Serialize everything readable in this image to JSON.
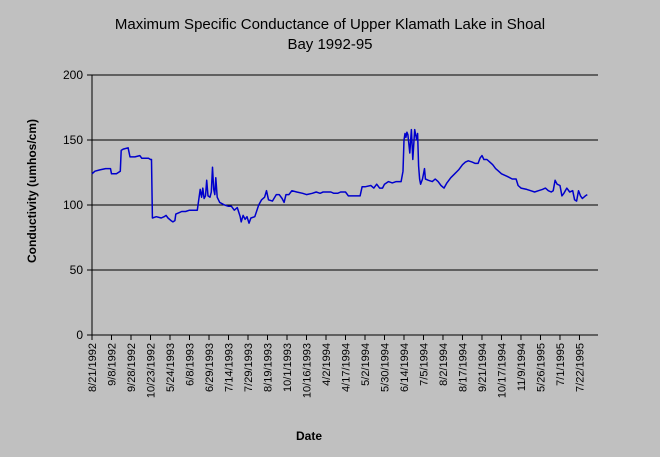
{
  "chart_data": {
    "type": "line",
    "title_lines": [
      "Maximum Specific Conductance of Upper Klamath Lake in Shoal",
      "Bay 1992-95"
    ],
    "xlabel": "Date",
    "ylabel": "Conductivity (umhos/cm)",
    "ylim": [
      0,
      200
    ],
    "yticks": [
      0,
      50,
      100,
      150,
      200
    ],
    "grid": "horizontal",
    "legend": "none",
    "line_color": "#0000cc",
    "x_tick_labels": [
      "8/21/1992",
      "9/8/1992",
      "9/28/1992",
      "10/23/1992",
      "5/24/1993",
      "6/8/1993",
      "6/29/1993",
      "7/14/1993",
      "7/29/1993",
      "8/19/1993",
      "10/1/1993",
      "10/16/1993",
      "4/2/1994",
      "4/17/1994",
      "5/2/1994",
      "5/30/1994",
      "6/14/1994",
      "7/5/1994",
      "8/2/1994",
      "8/17/1994",
      "9/21/1994",
      "10/17/1994",
      "11/9/1994",
      "5/26/1995",
      "7/1/1995",
      "7/22/1995"
    ],
    "x_range": [
      0,
      25.95
    ],
    "series": [
      {
        "points": [
          [
            0.0,
            124
          ],
          [
            0.15,
            126
          ],
          [
            0.4,
            127
          ],
          [
            0.7,
            128
          ],
          [
            0.95,
            128
          ],
          [
            1.0,
            124
          ],
          [
            1.25,
            124
          ],
          [
            1.45,
            126
          ],
          [
            1.5,
            142
          ],
          [
            1.6,
            143
          ],
          [
            1.85,
            144
          ],
          [
            1.95,
            137
          ],
          [
            2.2,
            137
          ],
          [
            2.45,
            138
          ],
          [
            2.55,
            136
          ],
          [
            2.9,
            136
          ],
          [
            3.0,
            135
          ],
          [
            3.05,
            135
          ],
          [
            3.1,
            90
          ],
          [
            3.3,
            91
          ],
          [
            3.55,
            90
          ],
          [
            3.7,
            91
          ],
          [
            3.8,
            92
          ],
          [
            3.9,
            90
          ],
          [
            4.05,
            88
          ],
          [
            4.15,
            87
          ],
          [
            4.25,
            88
          ],
          [
            4.3,
            93
          ],
          [
            4.45,
            94
          ],
          [
            4.6,
            95
          ],
          [
            4.8,
            95
          ],
          [
            5.0,
            96
          ],
          [
            5.2,
            96
          ],
          [
            5.4,
            96
          ],
          [
            5.55,
            112
          ],
          [
            5.62,
            106
          ],
          [
            5.68,
            113
          ],
          [
            5.75,
            105
          ],
          [
            5.82,
            107
          ],
          [
            5.88,
            119
          ],
          [
            5.95,
            107
          ],
          [
            6.05,
            106
          ],
          [
            6.12,
            110
          ],
          [
            6.18,
            129
          ],
          [
            6.24,
            112
          ],
          [
            6.3,
            108
          ],
          [
            6.35,
            121
          ],
          [
            6.42,
            106
          ],
          [
            6.55,
            102
          ],
          [
            6.8,
            100
          ],
          [
            7.0,
            99
          ],
          [
            7.15,
            99
          ],
          [
            7.3,
            96
          ],
          [
            7.45,
            98
          ],
          [
            7.6,
            91
          ],
          [
            7.65,
            87
          ],
          [
            7.75,
            92
          ],
          [
            7.85,
            89
          ],
          [
            7.95,
            91
          ],
          [
            8.05,
            86
          ],
          [
            8.15,
            90
          ],
          [
            8.35,
            91
          ],
          [
            8.55,
            100
          ],
          [
            8.7,
            104
          ],
          [
            8.85,
            106
          ],
          [
            8.95,
            111
          ],
          [
            9.05,
            104
          ],
          [
            9.25,
            103
          ],
          [
            9.45,
            108
          ],
          [
            9.6,
            108
          ],
          [
            9.75,
            105
          ],
          [
            9.85,
            102
          ],
          [
            9.95,
            108
          ],
          [
            10.1,
            108
          ],
          [
            10.25,
            111
          ],
          [
            10.5,
            110
          ],
          [
            10.8,
            109
          ],
          [
            11.0,
            108
          ],
          [
            11.3,
            109
          ],
          [
            11.5,
            110
          ],
          [
            11.7,
            109
          ],
          [
            11.85,
            110
          ],
          [
            12.05,
            110
          ],
          [
            12.25,
            110
          ],
          [
            12.4,
            109
          ],
          [
            12.6,
            109
          ],
          [
            12.75,
            110
          ],
          [
            13.0,
            110
          ],
          [
            13.15,
            107
          ],
          [
            13.5,
            107
          ],
          [
            13.75,
            107
          ],
          [
            13.85,
            114
          ],
          [
            14.0,
            114
          ],
          [
            14.3,
            115
          ],
          [
            14.45,
            113
          ],
          [
            14.6,
            116
          ],
          [
            14.75,
            113
          ],
          [
            14.9,
            113
          ],
          [
            15.0,
            116
          ],
          [
            15.2,
            118
          ],
          [
            15.4,
            117
          ],
          [
            15.6,
            118
          ],
          [
            15.85,
            118
          ],
          [
            15.95,
            126
          ],
          [
            16.0,
            150
          ],
          [
            16.05,
            155
          ],
          [
            16.1,
            152
          ],
          [
            16.15,
            156
          ],
          [
            16.2,
            154
          ],
          [
            16.3,
            140
          ],
          [
            16.38,
            158
          ],
          [
            16.45,
            135
          ],
          [
            16.55,
            158
          ],
          [
            16.65,
            150
          ],
          [
            16.7,
            155
          ],
          [
            16.75,
            130
          ],
          [
            16.8,
            120
          ],
          [
            16.85,
            116
          ],
          [
            16.95,
            120
          ],
          [
            17.05,
            128
          ],
          [
            17.1,
            120
          ],
          [
            17.25,
            119
          ],
          [
            17.45,
            118
          ],
          [
            17.6,
            120
          ],
          [
            17.75,
            118
          ],
          [
            17.9,
            115
          ],
          [
            18.05,
            113
          ],
          [
            18.2,
            117
          ],
          [
            18.4,
            121
          ],
          [
            18.6,
            124
          ],
          [
            18.8,
            127
          ],
          [
            19.0,
            131
          ],
          [
            19.15,
            133
          ],
          [
            19.3,
            134
          ],
          [
            19.5,
            133
          ],
          [
            19.65,
            132
          ],
          [
            19.8,
            132
          ],
          [
            19.9,
            136
          ],
          [
            20.0,
            138
          ],
          [
            20.1,
            135
          ],
          [
            20.25,
            135
          ],
          [
            20.4,
            133
          ],
          [
            20.55,
            131
          ],
          [
            20.7,
            128
          ],
          [
            20.85,
            126
          ],
          [
            21.0,
            124
          ],
          [
            21.3,
            122
          ],
          [
            21.55,
            120
          ],
          [
            21.75,
            120
          ],
          [
            21.85,
            115
          ],
          [
            22.0,
            113
          ],
          [
            22.3,
            112
          ],
          [
            22.5,
            111
          ],
          [
            22.7,
            110
          ],
          [
            22.9,
            111
          ],
          [
            23.1,
            112
          ],
          [
            23.25,
            113
          ],
          [
            23.4,
            111
          ],
          [
            23.55,
            110
          ],
          [
            23.65,
            111
          ],
          [
            23.75,
            119
          ],
          [
            23.85,
            116
          ],
          [
            24.0,
            115
          ],
          [
            24.1,
            107
          ],
          [
            24.2,
            109
          ],
          [
            24.35,
            113
          ],
          [
            24.5,
            110
          ],
          [
            24.65,
            111
          ],
          [
            24.75,
            104
          ],
          [
            24.85,
            103
          ],
          [
            24.95,
            111
          ],
          [
            25.05,
            107
          ],
          [
            25.15,
            105
          ],
          [
            25.3,
            107
          ],
          [
            25.4,
            108
          ]
        ]
      }
    ]
  }
}
